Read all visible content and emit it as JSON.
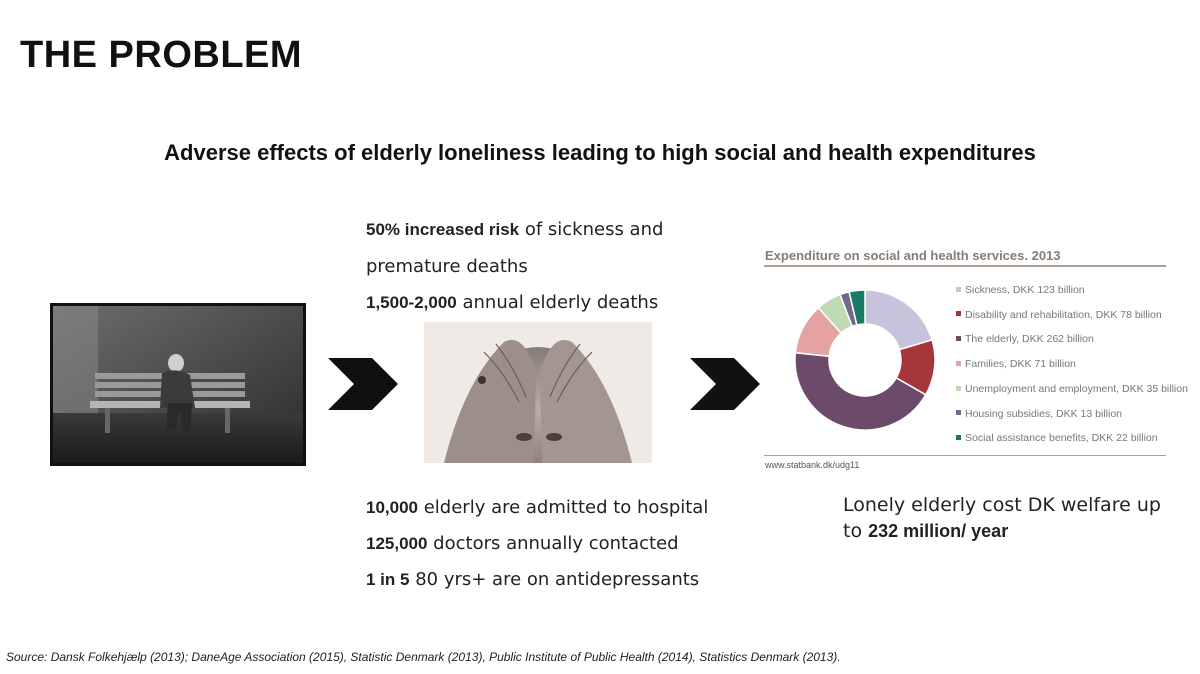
{
  "title": "THE PROBLEM",
  "subtitle": "Adverse effects of elderly loneliness leading to high social and health expenditures",
  "stats_top": [
    {
      "bold": "50% increased risk",
      "text": " of sickness and"
    },
    {
      "bold": "",
      "text": "premature deaths"
    },
    {
      "bold": "1,500-2,000",
      "text": " annual elderly deaths"
    }
  ],
  "stats_bottom": [
    {
      "bold": "10,000",
      "text": " elderly are admitted to hospital"
    },
    {
      "bold": "125,000",
      "text": " doctors annually contacted"
    },
    {
      "bold": "1 in 5",
      "text": " 80 yrs+ are on antidepressants"
    }
  ],
  "cost": {
    "line1": "Lonely elderly cost DK welfare up",
    "prefix": "to ",
    "bold": "232 million/ year"
  },
  "source": "Source: Dansk Folkehjælp (2013); DaneAge Association (2015), Statistic Denmark (2013), Public Institute of Public Health (2014), Statistics Denmark (2013).",
  "chart_data": {
    "type": "pie",
    "donut": true,
    "title": "Expenditure on social and health services. 2013",
    "source": "www.statbank.dk/udg11",
    "legend_position": "right",
    "categories": [
      "Sickness, DKK 123 billion",
      "Disability and rehabilitation, DKK 78 billion",
      "The elderly, DKK 262 billion",
      "Families, DKK 71 billion",
      "Unemployment and employment, DKK 35 billion",
      "Housing subsidies, DKK 13 billion",
      "Social assistance benefits, DKK 22 billion"
    ],
    "values": [
      123,
      78,
      262,
      71,
      35,
      13,
      22
    ],
    "colors": [
      "#c8c3dc",
      "#a5373b",
      "#6b4a6a",
      "#e4a3a1",
      "#bedbb6",
      "#6f6a8b",
      "#1a7a63"
    ]
  }
}
